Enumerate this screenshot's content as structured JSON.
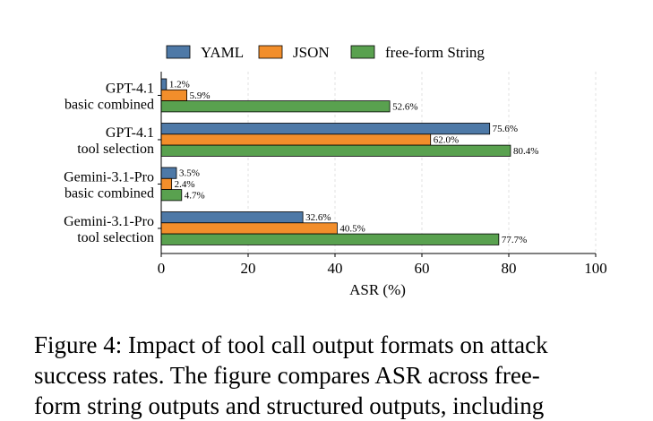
{
  "chart_data": {
    "type": "bar",
    "orientation": "horizontal",
    "categories": [
      [
        "GPT-4.1",
        "basic combined"
      ],
      [
        "GPT-4.1",
        "tool selection"
      ],
      [
        "Gemini-3.1-Pro",
        "basic combined"
      ],
      [
        "Gemini-3.1-Pro",
        "tool selection"
      ]
    ],
    "series": [
      {
        "name": "YAML",
        "color": "#4e79a7",
        "values": [
          1.2,
          75.6,
          3.5,
          32.6
        ]
      },
      {
        "name": "JSON",
        "color": "#f28e2b",
        "values": [
          5.9,
          62.0,
          2.4,
          40.5
        ]
      },
      {
        "name": "free-form String",
        "color": "#59a14f",
        "values": [
          52.6,
          80.4,
          4.7,
          77.7
        ]
      }
    ],
    "value_labels": [
      [
        "1.2%",
        "75.6%",
        "3.5%",
        "32.6%"
      ],
      [
        "5.9%",
        "62.0%",
        "2.4%",
        "40.5%"
      ],
      [
        "52.6%",
        "80.4%",
        "4.7%",
        "77.7%"
      ]
    ],
    "xlabel": "ASR (%)",
    "ylabel": "",
    "xlim": [
      0,
      100
    ],
    "xticks": [
      0,
      20,
      40,
      60,
      80,
      100
    ],
    "grid": "vertical dashed",
    "legend_position": "top"
  },
  "caption": {
    "lines": [
      "Figure 4: Impact of tool call output formats on attack",
      "success rates. The figure compares ASR across free-",
      "form string outputs and structured outputs, including"
    ]
  }
}
